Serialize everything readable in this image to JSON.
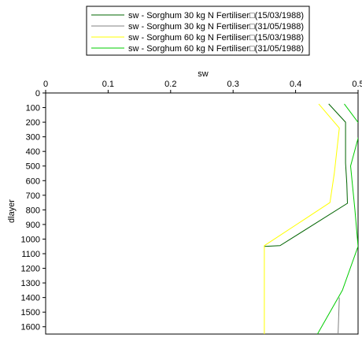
{
  "chart_data": {
    "type": "line",
    "xlabel": "sw",
    "ylabel": "dlayer",
    "xlim": [
      0,
      0.5
    ],
    "ylim": [
      0,
      1650
    ],
    "x_axis_position": "top",
    "y_axis_inverted": true,
    "grid": false,
    "legend_position": "top-center",
    "x_ticks": [
      "0",
      "0.1",
      "0.2",
      "0.3",
      "0.4",
      "0.5"
    ],
    "y_ticks": [
      "0",
      "100",
      "200",
      "300",
      "400",
      "500",
      "600",
      "700",
      "800",
      "900",
      "1000",
      "1100",
      "1200",
      "1300",
      "1400",
      "1500",
      "1600"
    ],
    "series": [
      {
        "name": "sw - Sorghum 30 kg N Fertiliser□(15/03/1988)",
        "color": "#006400",
        "points": [
          [
            0.453,
            75
          ],
          [
            0.48,
            200
          ],
          [
            0.48,
            480
          ],
          [
            0.482,
            620
          ],
          [
            0.483,
            755
          ],
          [
            0.375,
            1045
          ],
          [
            0.35,
            1050
          ]
        ]
      },
      {
        "name": "sw - Sorghum 30 kg N Fertiliser□(31/05/1988)",
        "color": "#808080",
        "points": [
          [
            0.47,
            1400
          ],
          [
            0.468,
            1650
          ]
        ]
      },
      {
        "name": "sw - Sorghum 60 kg N Fertiliser□(15/03/1988)",
        "color": "#ffff00",
        "points": [
          [
            0.437,
            75
          ],
          [
            0.47,
            240
          ],
          [
            0.462,
            550
          ],
          [
            0.455,
            750
          ],
          [
            0.35,
            1045
          ],
          [
            0.35,
            1650
          ]
        ]
      },
      {
        "name": "sw - Sorghum 60 kg N Fertiliser□(31/05/1988)",
        "color": "#00cc00",
        "points": [
          [
            0.478,
            75
          ],
          [
            0.505,
            230
          ],
          [
            0.488,
            500
          ],
          [
            0.495,
            800
          ],
          [
            0.5,
            1050
          ],
          [
            0.475,
            1350
          ],
          [
            0.435,
            1650
          ]
        ]
      }
    ]
  }
}
